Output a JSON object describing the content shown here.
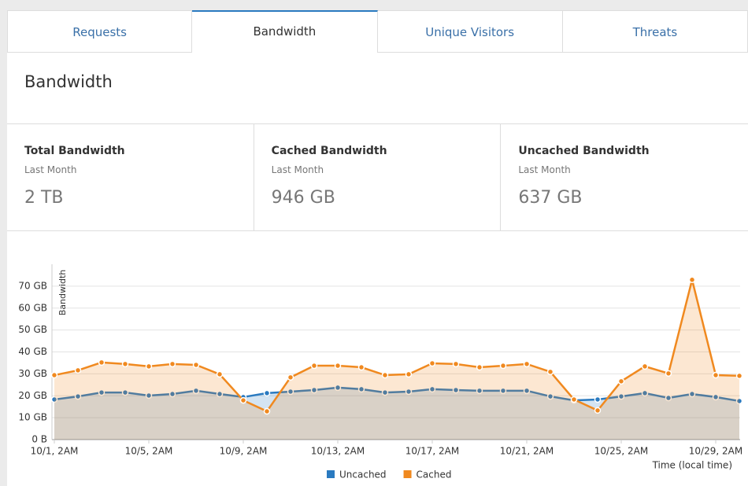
{
  "tabs": [
    {
      "label": "Requests",
      "active": false
    },
    {
      "label": "Bandwidth",
      "active": true
    },
    {
      "label": "Unique Visitors",
      "active": false
    },
    {
      "label": "Threats",
      "active": false
    }
  ],
  "section_title": "Bandwidth",
  "stats": [
    {
      "title": "Total Bandwidth",
      "period": "Last Month",
      "value": "2 TB"
    },
    {
      "title": "Cached Bandwidth",
      "period": "Last Month",
      "value": "946 GB"
    },
    {
      "title": "Uncached Bandwidth",
      "period": "Last Month",
      "value": "637 GB"
    }
  ],
  "chart_data": {
    "type": "area",
    "y_label": "Bandwidth",
    "x_label": "Time (local time)",
    "categories": [
      "10/1, 2AM",
      null,
      null,
      null,
      "10/5, 2AM",
      null,
      null,
      null,
      "10/9, 2AM",
      null,
      null,
      null,
      "10/13, 2AM",
      null,
      null,
      null,
      "10/17, 2AM",
      null,
      null,
      null,
      "10/21, 2AM",
      null,
      null,
      null,
      "10/25, 2AM",
      null,
      null,
      null,
      "10/29, 2AM",
      null
    ],
    "series": [
      {
        "name": "Uncached",
        "color": "#2a7ac0",
        "values": [
          18.3,
          19.7,
          21.5,
          21.5,
          20.1,
          20.8,
          22.3,
          20.8,
          19.4,
          21.2,
          21.9,
          22.6,
          23.7,
          23,
          21.5,
          21.9,
          23,
          22.6,
          22.3,
          22.3,
          22.3,
          19.7,
          17.9,
          18.3,
          19.7,
          21.2,
          19,
          20.8,
          19.4,
          17.6
        ]
      },
      {
        "name": "Cached",
        "color": "#f0891f",
        "values": [
          29.4,
          31.6,
          35.2,
          34.5,
          33.4,
          34.5,
          34.1,
          29.8,
          17.9,
          12.9,
          28.4,
          33.7,
          33.7,
          33,
          29.4,
          29.8,
          34.8,
          34.5,
          33,
          33.7,
          34.5,
          30.9,
          18.3,
          13.3,
          26.6,
          33.4,
          30.2,
          72.9,
          29.4,
          29.1
        ]
      }
    ],
    "ylim": [
      0,
      80
    ],
    "yticks": [
      {
        "value": 0,
        "label": "0 B"
      },
      {
        "value": 10,
        "label": "10 GB"
      },
      {
        "value": 20,
        "label": "20 GB"
      },
      {
        "value": 30,
        "label": "30 GB"
      },
      {
        "value": 40,
        "label": "40 GB"
      },
      {
        "value": 50,
        "label": "50 GB"
      },
      {
        "value": 60,
        "label": "60 GB"
      },
      {
        "value": 70,
        "label": "70 GB"
      }
    ],
    "grid": true,
    "legend": "bottom"
  }
}
